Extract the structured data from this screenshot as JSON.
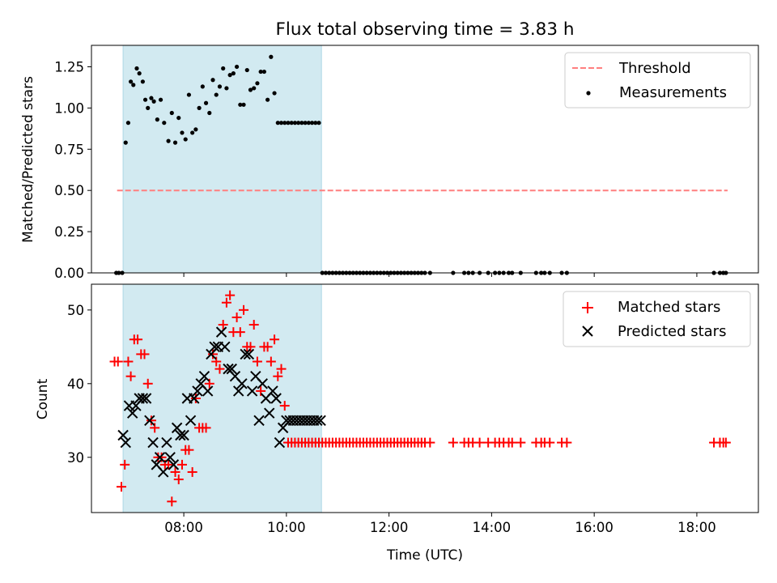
{
  "chart_data": [
    {
      "type": "scatter",
      "title": "Flux total observing time = 3.83 h",
      "xlabel": "",
      "ylabel": "Matched/Predicted stars",
      "xlim": [
        "06:12",
        "19:12"
      ],
      "ylim": [
        0,
        1.38
      ],
      "yticks": [
        "0.00",
        "0.25",
        "0.50",
        "0.75",
        "1.00",
        "1.25"
      ],
      "shaded_span": [
        "06:49",
        "10:41"
      ],
      "legend_position": "upper right",
      "threshold": {
        "name": "Threshold",
        "color": "#ff7f7f",
        "style": "dashed",
        "y": 0.5,
        "x": [
          "06:42",
          "18:36"
        ]
      },
      "series": [
        {
          "name": "Measurements",
          "marker": "dot",
          "color": "#000000",
          "x": [
            "06:41",
            "06:44",
            "06:48",
            "06:52",
            "06:55",
            "06:58",
            "07:01",
            "07:05",
            "07:08",
            "07:12",
            "07:15",
            "07:18",
            "07:22",
            "07:25",
            "07:29",
            "07:33",
            "07:37",
            "07:42",
            "07:46",
            "07:50",
            "07:54",
            "07:58",
            "08:02",
            "08:06",
            "08:10",
            "08:14",
            "08:18",
            "08:22",
            "08:26",
            "08:30",
            "08:34",
            "08:38",
            "08:42",
            "08:46",
            "08:50",
            "08:54",
            "08:58",
            "09:02",
            "09:06",
            "09:10",
            "09:14",
            "09:18",
            "09:22",
            "09:26",
            "09:30",
            "09:34",
            "09:38",
            "09:42",
            "09:46",
            "09:50",
            "09:54",
            "09:58",
            "10:02",
            "10:06",
            "10:10",
            "10:14",
            "10:18",
            "10:22",
            "10:26",
            "10:30",
            "10:34",
            "10:38"
          ],
          "y": [
            0,
            0,
            0,
            0.79,
            0.91,
            1.16,
            1.14,
            1.24,
            1.21,
            1.16,
            1.05,
            1.0,
            1.06,
            1.04,
            0.93,
            1.05,
            0.91,
            0.8,
            0.97,
            0.79,
            0.94,
            0.85,
            0.81,
            1.08,
            0.85,
            0.87,
            1.0,
            1.13,
            1.03,
            0.97,
            1.17,
            1.08,
            1.13,
            1.24,
            1.12,
            1.2,
            1.21,
            1.25,
            1.02,
            1.02,
            1.23,
            1.11,
            1.12,
            1.15,
            1.22,
            1.22,
            1.05,
            1.31,
            1.09,
            0.91,
            0.91,
            0.91,
            0.91,
            0.91,
            0.91,
            0.91,
            0.91,
            0.91,
            0.91,
            0.91,
            0.91,
            0.91
          ]
        }
      ],
      "zero_series_x": [
        "10:42",
        "10:46",
        "10:50",
        "10:54",
        "10:58",
        "11:02",
        "11:06",
        "11:10",
        "11:14",
        "11:18",
        "11:22",
        "11:26",
        "11:30",
        "11:34",
        "11:38",
        "11:42",
        "11:46",
        "11:50",
        "11:54",
        "11:58",
        "12:02",
        "12:06",
        "12:10",
        "12:14",
        "12:18",
        "12:22",
        "12:26",
        "12:30",
        "12:34",
        "12:38",
        "12:42",
        "12:48",
        "13:15",
        "13:28",
        "13:33",
        "13:38",
        "13:46",
        "13:56",
        "14:04",
        "14:09",
        "14:14",
        "14:20",
        "14:24",
        "14:34",
        "14:52",
        "14:58",
        "15:02",
        "15:08",
        "15:22",
        "15:28",
        "18:20",
        "18:27",
        "18:31",
        "18:34"
      ]
    },
    {
      "type": "scatter",
      "title": "",
      "xlabel": "Time (UTC)",
      "ylabel": "Count",
      "xlim": [
        "06:12",
        "19:12"
      ],
      "ylim": [
        22.5,
        53.5
      ],
      "yticks": [
        "30",
        "40",
        "50"
      ],
      "xticks": [
        "08:00",
        "10:00",
        "12:00",
        "14:00",
        "16:00",
        "18:00"
      ],
      "shaded_span": [
        "06:49",
        "10:41"
      ],
      "legend_position": "upper right",
      "series": [
        {
          "name": "Matched stars",
          "marker": "plus",
          "color": "#ff0000",
          "x": [
            "06:39",
            "06:43",
            "06:47",
            "06:51",
            "06:55",
            "06:58",
            "07:02",
            "07:06",
            "07:10",
            "07:14",
            "07:18",
            "07:22",
            "07:26",
            "07:30",
            "07:34",
            "07:38",
            "07:42",
            "07:46",
            "07:50",
            "07:54",
            "07:58",
            "08:02",
            "08:06",
            "08:10",
            "08:14",
            "08:18",
            "08:22",
            "08:26",
            "08:30",
            "08:34",
            "08:38",
            "08:42",
            "08:46",
            "08:50",
            "08:54",
            "08:58",
            "09:02",
            "09:06",
            "09:10",
            "09:14",
            "09:18",
            "09:22",
            "09:26",
            "09:30",
            "09:34",
            "09:38",
            "09:42",
            "09:46",
            "09:50",
            "09:54",
            "09:58",
            "10:02",
            "10:06",
            "10:10",
            "10:14",
            "10:18",
            "10:22",
            "10:26",
            "10:30",
            "10:34",
            "10:38"
          ],
          "y": [
            43,
            43,
            26,
            29,
            43,
            41,
            46,
            46,
            44,
            44,
            40,
            35,
            34,
            30,
            30,
            29,
            29,
            24,
            28,
            27,
            29,
            31,
            31,
            28,
            38,
            34,
            34,
            34,
            40,
            44,
            43,
            42,
            48,
            51,
            52,
            47,
            49,
            47,
            50,
            45,
            45,
            48,
            43,
            39,
            45,
            45,
            43,
            46,
            41,
            42,
            37,
            32,
            32,
            32,
            32,
            32,
            32,
            32,
            32,
            32,
            32
          ]
        },
        {
          "name": "Predicted stars",
          "marker": "x",
          "color": "#000000",
          "x": [
            "06:49",
            "06:52",
            "06:56",
            "07:00",
            "07:04",
            "07:08",
            "07:12",
            "07:16",
            "07:20",
            "07:24",
            "07:28",
            "07:32",
            "07:36",
            "07:40",
            "07:44",
            "07:48",
            "07:52",
            "07:56",
            "08:00",
            "08:04",
            "08:08",
            "08:12",
            "08:16",
            "08:20",
            "08:24",
            "08:28",
            "08:32",
            "08:36",
            "08:40",
            "08:44",
            "08:48",
            "08:52",
            "08:56",
            "09:00",
            "09:04",
            "09:08",
            "09:12",
            "09:16",
            "09:20",
            "09:24",
            "09:28",
            "09:32",
            "09:36",
            "09:40",
            "09:44",
            "09:48",
            "09:52",
            "09:56",
            "10:00",
            "10:04",
            "10:08",
            "10:12",
            "10:16",
            "10:20",
            "10:24",
            "10:28",
            "10:32",
            "10:36",
            "10:40"
          ],
          "y": [
            33,
            32,
            37,
            36,
            37,
            38,
            38,
            38,
            35,
            32,
            29,
            30,
            28,
            32,
            30,
            29,
            34,
            33,
            33,
            38,
            35,
            38,
            39,
            40,
            41,
            39,
            44,
            45,
            45,
            47,
            45,
            42,
            42,
            41,
            39,
            40,
            44,
            44,
            39,
            41,
            35,
            40,
            38,
            36,
            39,
            38,
            32,
            34,
            35,
            35,
            35,
            35,
            35,
            35,
            35,
            35,
            35,
            35,
            35
          ]
        }
      ],
      "extra_matched_x": [
        "10:42",
        "10:46",
        "10:50",
        "10:54",
        "10:58",
        "11:02",
        "11:06",
        "11:10",
        "11:14",
        "11:18",
        "11:22",
        "11:26",
        "11:30",
        "11:34",
        "11:38",
        "11:42",
        "11:46",
        "11:50",
        "11:54",
        "11:58",
        "12:02",
        "12:06",
        "12:10",
        "12:14",
        "12:18",
        "12:22",
        "12:26",
        "12:30",
        "12:34",
        "12:38",
        "12:42",
        "12:48",
        "13:15",
        "13:28",
        "13:33",
        "13:38",
        "13:46",
        "13:56",
        "14:04",
        "14:09",
        "14:14",
        "14:20",
        "14:24",
        "14:34",
        "14:52",
        "14:58",
        "15:02",
        "15:08",
        "15:22",
        "15:28",
        "18:20",
        "18:27",
        "18:31",
        "18:34"
      ],
      "extra_matched_y": 32
    }
  ]
}
